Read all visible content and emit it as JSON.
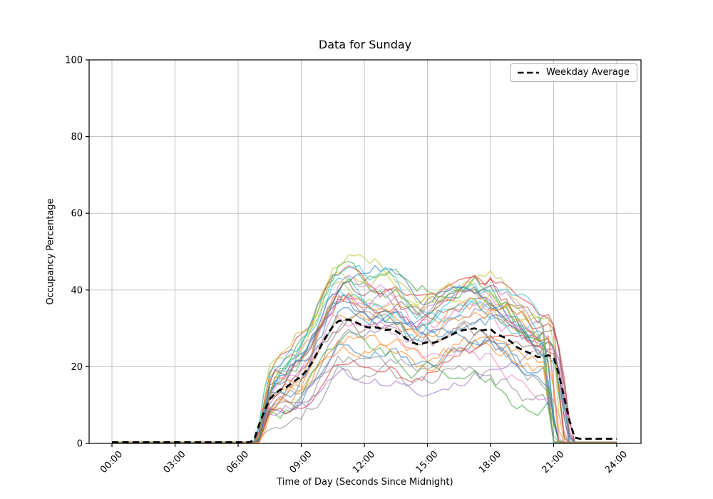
{
  "chart_data": {
    "type": "line",
    "title": "Data for Sunday",
    "xlabel": "Time of Day (Seconds Since Midnight)",
    "ylabel": "Occupancy Percentage",
    "ylim": [
      0,
      100
    ],
    "xlim_hours": [
      -1.1,
      25.2
    ],
    "grid": true,
    "grid_color": "#bdbdbd",
    "axis_color": "#000000",
    "background_color": "#ffffff",
    "x_tick_hours": [
      0,
      3,
      6,
      9,
      12,
      15,
      18,
      21,
      24
    ],
    "x_tick_labels": [
      "00:00",
      "03:00",
      "06:00",
      "09:00",
      "12:00",
      "15:00",
      "18:00",
      "21:00",
      "24:00"
    ],
    "y_tick_values": [
      0,
      20,
      40,
      60,
      80,
      100
    ],
    "y_tick_labels": [
      "0",
      "20",
      "40",
      "60",
      "80",
      "100"
    ],
    "legend": {
      "location": "upper right",
      "entries": [
        {
          "label": "Weekday Average",
          "color": "#000000",
          "style": "dashed"
        }
      ]
    },
    "average_series": {
      "name": "Weekday Average",
      "color": "#000000",
      "line_style": "dashed",
      "points": [
        [
          0,
          0.3
        ],
        [
          6.5,
          0.3
        ],
        [
          6.75,
          0.8
        ],
        [
          7,
          5
        ],
        [
          7.25,
          8.5
        ],
        [
          7.5,
          11.5
        ],
        [
          7.75,
          13
        ],
        [
          8,
          14
        ],
        [
          8.25,
          14.5
        ],
        [
          8.5,
          15.5
        ],
        [
          8.75,
          16.5
        ],
        [
          9,
          17.5
        ],
        [
          9.25,
          19
        ],
        [
          9.5,
          21
        ],
        [
          9.75,
          23.5
        ],
        [
          10,
          26
        ],
        [
          10.25,
          28.5
        ],
        [
          10.5,
          30.5
        ],
        [
          10.75,
          31.8
        ],
        [
          11,
          32.2
        ],
        [
          11.25,
          32.3
        ],
        [
          11.5,
          31.8
        ],
        [
          11.75,
          31.2
        ],
        [
          12,
          30.5
        ],
        [
          12.25,
          30.2
        ],
        [
          12.5,
          30.3
        ],
        [
          12.75,
          30
        ],
        [
          13,
          29.6
        ],
        [
          13.25,
          29.7
        ],
        [
          13.5,
          29.3
        ],
        [
          13.75,
          28.4
        ],
        [
          14,
          27.3
        ],
        [
          14.25,
          26.4
        ],
        [
          14.5,
          25.9
        ],
        [
          14.75,
          26
        ],
        [
          15,
          26.4
        ],
        [
          15.25,
          26.2
        ],
        [
          15.5,
          26.6
        ],
        [
          15.75,
          27.3
        ],
        [
          16,
          28
        ],
        [
          16.25,
          28.6
        ],
        [
          16.5,
          29.3
        ],
        [
          16.75,
          29.6
        ],
        [
          17,
          29.8
        ],
        [
          17.25,
          30
        ],
        [
          17.5,
          29.4
        ],
        [
          17.75,
          29.6
        ],
        [
          18,
          29.8
        ],
        [
          18.25,
          28.6
        ],
        [
          18.5,
          28
        ],
        [
          18.75,
          27.4
        ],
        [
          19,
          26.4
        ],
        [
          19.25,
          25.1
        ],
        [
          19.5,
          24.4
        ],
        [
          19.75,
          23.8
        ],
        [
          20,
          23.2
        ],
        [
          20.25,
          22.5
        ],
        [
          20.5,
          22.6
        ],
        [
          20.75,
          23
        ],
        [
          21,
          22.4
        ],
        [
          21.25,
          18
        ],
        [
          21.5,
          12
        ],
        [
          21.75,
          6
        ],
        [
          22,
          1.5
        ],
        [
          22.25,
          1.2
        ],
        [
          24,
          1.2
        ]
      ]
    },
    "individual_traces": {
      "count": 32,
      "opacity": 0.55,
      "palette": [
        "#1f77b4",
        "#ff7f0e",
        "#2ca02c",
        "#d62728",
        "#9467bd",
        "#8c564b",
        "#e377c2",
        "#7f7f7f",
        "#bcbd22",
        "#17becf"
      ],
      "baseline_value": 0.3,
      "active_hours": [
        6.7,
        22.0
      ],
      "sample_interval_minutes": 15,
      "value_range": [
        0,
        53
      ],
      "description": "Many noisy per-day occupancy traces that are ~0 before ~06:45, fluctuate between ~10 and ~53 through midday (peak near 12:00), and fall back to ~0 between 21:00 and 22:00."
    }
  }
}
